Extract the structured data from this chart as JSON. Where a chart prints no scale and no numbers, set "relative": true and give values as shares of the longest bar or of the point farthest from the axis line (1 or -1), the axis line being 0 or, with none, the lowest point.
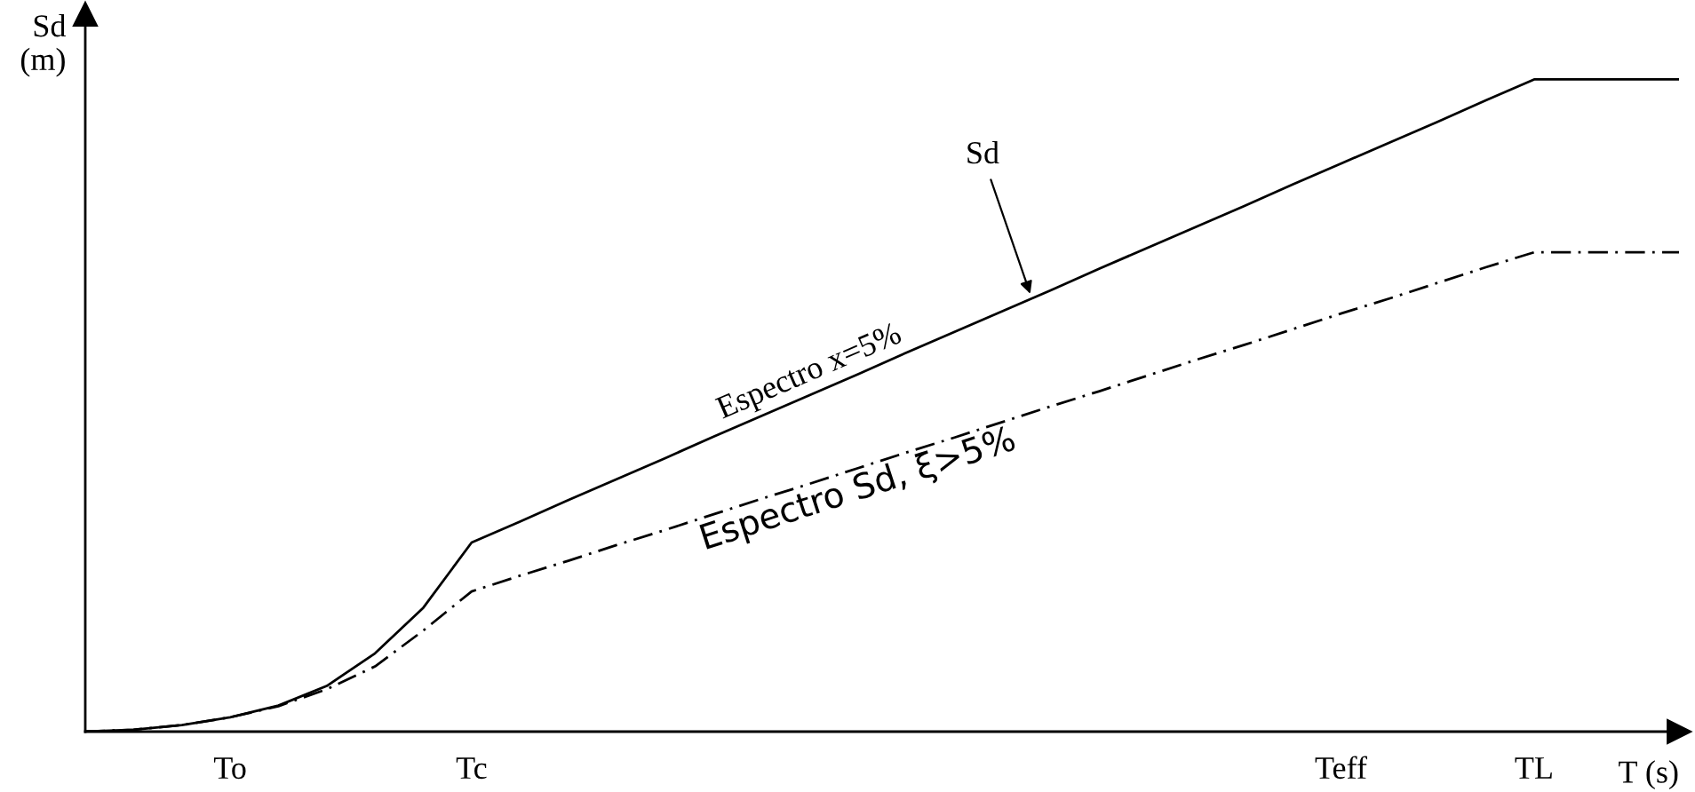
{
  "chart_data": {
    "type": "line",
    "relative": true,
    "ylabel": "Sd\n(m)",
    "xlabel": "T (s)",
    "categories": [
      null,
      null,
      null,
      "To",
      null,
      null,
      null,
      null,
      "Tc",
      null,
      null,
      null,
      null,
      null,
      null,
      null,
      null,
      null,
      null,
      null,
      null,
      null,
      null,
      null,
      null,
      null,
      "Teff",
      null,
      null,
      null,
      "TL",
      null,
      null,
      null
    ],
    "series": [
      {
        "name": "Espectro x=5%",
        "color": "#000000",
        "line_style": "solid",
        "values": [
          0,
          0.003,
          0.01,
          0.022,
          0.04,
          0.07,
          0.12,
          0.19,
          0.29,
          0.322,
          0.355,
          0.387,
          0.419,
          0.452,
          0.484,
          0.516,
          0.548,
          0.581,
          0.613,
          0.645,
          0.677,
          0.71,
          0.742,
          0.774,
          0.806,
          0.839,
          0.871,
          0.903,
          0.935,
          0.968,
          1.0,
          1.0,
          1.0,
          1.0
        ]
      },
      {
        "name": "Espectro Sd, ξ>5%",
        "color": "#000000",
        "line_style": "dashed",
        "values": [
          0,
          0.003,
          0.01,
          0.022,
          0.039,
          0.065,
          0.1,
          0.155,
          0.215,
          0.239,
          0.262,
          0.286,
          0.309,
          0.333,
          0.357,
          0.38,
          0.404,
          0.428,
          0.451,
          0.475,
          0.499,
          0.522,
          0.546,
          0.57,
          0.593,
          0.617,
          0.641,
          0.664,
          0.688,
          0.712,
          0.735,
          0.735,
          0.735,
          0.735
        ]
      }
    ],
    "annotations": [
      "Sd"
    ]
  }
}
